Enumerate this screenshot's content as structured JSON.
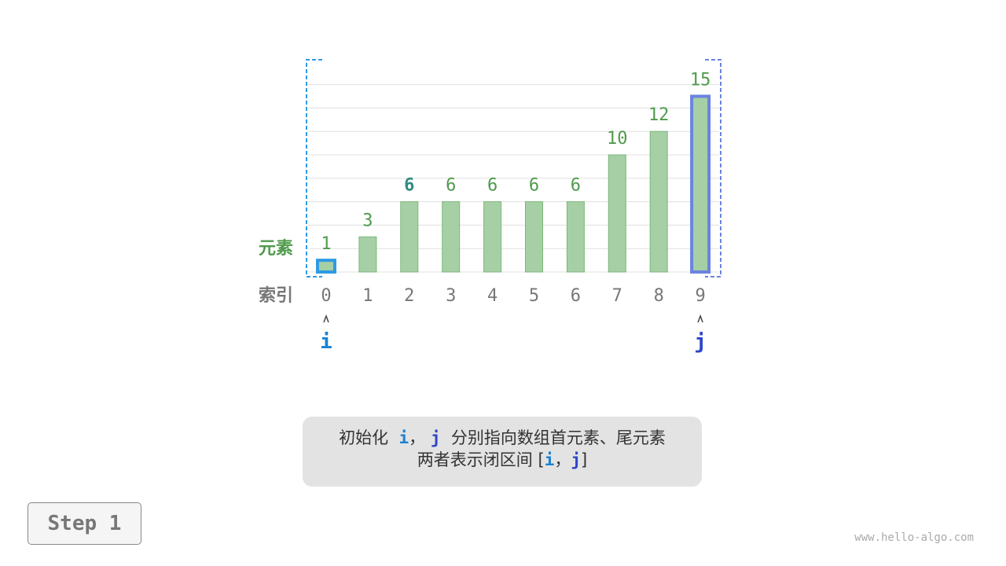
{
  "chart_data": {
    "type": "bar",
    "categories": [
      "0",
      "1",
      "2",
      "3",
      "4",
      "5",
      "6",
      "7",
      "8",
      "9"
    ],
    "values": [
      1,
      3,
      6,
      6,
      6,
      6,
      6,
      10,
      12,
      15
    ],
    "row_labels": {
      "elements": "元素",
      "index": "索引"
    },
    "ylim": [
      0,
      16
    ],
    "grid": true,
    "highlight_index_label": 2,
    "pointers": [
      {
        "name": "i",
        "index": 0,
        "color": "#1a82d1"
      },
      {
        "name": "j",
        "index": 9,
        "color": "#2d46c9"
      }
    ],
    "interval_bracket": {
      "from": 0,
      "to": 9
    }
  },
  "colors": {
    "bar_fill": "#a7cfa6",
    "bar_stroke": "#7bb779",
    "value_label": "#4f9a4c",
    "highlight_label": "#328a82",
    "index_label": "#777777",
    "grid": "#e0e0e0",
    "i_color": "#2e9be3",
    "j_color": "#6b83e0"
  },
  "caption": {
    "line1_pre": "初始化",
    "i": "i",
    "sep": "，",
    "j": "j",
    "line1_post": "分别指向数组首元素、尾元素",
    "line2_pre": "两者表示闭区间",
    "bracket_open": "[",
    "bracket_close": "]"
  },
  "step_label": "Step 1",
  "watermark": "www.hello-algo.com"
}
